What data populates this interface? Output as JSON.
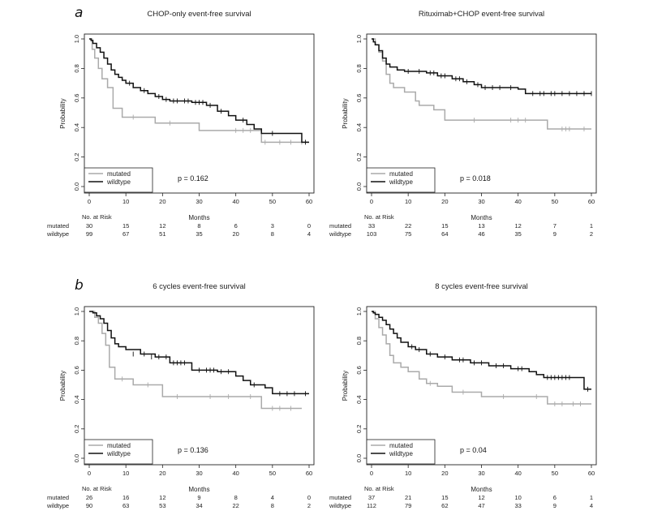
{
  "page": {
    "label_a": "a",
    "label_b": "b"
  },
  "chart_data": [
    {
      "type": "line",
      "title": "CHOP-only event-free survival",
      "xlabel": "Months",
      "ylabel": "Probability",
      "xlim": [
        0,
        60
      ],
      "ylim": [
        0,
        1
      ],
      "xticks": [
        "0",
        "10",
        "20",
        "30",
        "40",
        "50",
        "60"
      ],
      "yticks": [
        "0.0",
        "0.2",
        "0.4",
        "0.6",
        "0.8",
        "1.0"
      ],
      "p_value": "p = 0.162",
      "legend": [
        "mutated",
        "wildtype"
      ],
      "series": [
        {
          "name": "mutated",
          "color": "#aaaaaa",
          "x": [
            0,
            0.8,
            1.5,
            2.5,
            3.5,
            5,
            6.5,
            9,
            18,
            30,
            47,
            60
          ],
          "y": [
            1.0,
            0.93,
            0.87,
            0.8,
            0.73,
            0.67,
            0.53,
            0.47,
            0.43,
            0.38,
            0.3,
            0.3
          ],
          "censor_x": [
            12,
            22,
            40,
            42,
            44,
            48,
            52,
            55,
            58
          ],
          "censor_y": [
            0.47,
            0.43,
            0.38,
            0.38,
            0.38,
            0.3,
            0.3,
            0.3,
            0.3
          ]
        },
        {
          "name": "wildtype",
          "color": "#111111",
          "x": [
            0,
            0.5,
            1,
            2,
            3,
            4,
            5,
            6,
            7,
            8,
            9,
            10,
            12,
            14,
            16,
            18,
            20,
            22,
            25,
            28,
            32,
            35,
            38,
            40,
            43,
            45,
            47,
            52,
            58,
            60
          ],
          "y": [
            1.0,
            0.99,
            0.97,
            0.94,
            0.91,
            0.87,
            0.83,
            0.79,
            0.76,
            0.74,
            0.72,
            0.7,
            0.67,
            0.65,
            0.63,
            0.61,
            0.59,
            0.58,
            0.58,
            0.57,
            0.55,
            0.51,
            0.48,
            0.45,
            0.42,
            0.39,
            0.36,
            0.36,
            0.3,
            0.3
          ],
          "censor_x": [
            11,
            15,
            19,
            21,
            23,
            24,
            26,
            27,
            29,
            30,
            31,
            33,
            36,
            42,
            50,
            59
          ],
          "censor_y": [
            0.7,
            0.65,
            0.61,
            0.59,
            0.58,
            0.58,
            0.58,
            0.58,
            0.57,
            0.57,
            0.57,
            0.55,
            0.51,
            0.45,
            0.36,
            0.3
          ]
        }
      ],
      "risk_table": {
        "header": "No. at Risk",
        "rows": [
          {
            "label": "mutated",
            "values": [
              "30",
              "15",
              "12",
              "8",
              "6",
              "3",
              "0"
            ]
          },
          {
            "label": "wildtype",
            "values": [
              "99",
              "67",
              "51",
              "35",
              "20",
              "8",
              "4"
            ]
          }
        ]
      }
    },
    {
      "type": "line",
      "title": "Rituximab+CHOP event-free survival",
      "xlabel": "Months",
      "ylabel": "Probability",
      "xlim": [
        0,
        60
      ],
      "ylim": [
        0,
        1
      ],
      "xticks": [
        "0",
        "10",
        "20",
        "30",
        "40",
        "50",
        "60"
      ],
      "yticks": [
        "0.0",
        "0.2",
        "0.4",
        "0.6",
        "0.8",
        "1.0"
      ],
      "p_value": "p = 0.018",
      "legend": [
        "mutated",
        "wildtype"
      ],
      "series": [
        {
          "name": "mutated",
          "color": "#aaaaaa",
          "x": [
            0,
            1,
            2,
            3,
            4,
            5,
            6,
            9,
            12,
            13,
            17,
            20,
            48,
            60
          ],
          "y": [
            1.0,
            0.96,
            0.91,
            0.85,
            0.76,
            0.7,
            0.67,
            0.64,
            0.58,
            0.55,
            0.52,
            0.45,
            0.39,
            0.39
          ],
          "censor_x": [
            28,
            38,
            40,
            42,
            52,
            53,
            54,
            58
          ],
          "censor_y": [
            0.45,
            0.45,
            0.45,
            0.45,
            0.39,
            0.39,
            0.39,
            0.39
          ]
        },
        {
          "name": "wildtype",
          "color": "#111111",
          "x": [
            0,
            0.5,
            1,
            2,
            3,
            4,
            5,
            7,
            9,
            12,
            15,
            18,
            22,
            25,
            28,
            30,
            40,
            42,
            60
          ],
          "y": [
            1.0,
            0.98,
            0.96,
            0.92,
            0.87,
            0.83,
            0.81,
            0.79,
            0.78,
            0.78,
            0.77,
            0.75,
            0.73,
            0.71,
            0.69,
            0.67,
            0.66,
            0.63,
            0.63
          ],
          "censor_x": [
            10,
            13,
            16,
            17,
            19,
            20,
            23,
            24,
            26,
            29,
            31,
            33,
            35,
            38,
            44,
            46,
            47,
            49,
            50,
            52,
            54,
            56,
            58,
            60
          ],
          "censor_y": [
            0.78,
            0.78,
            0.77,
            0.77,
            0.75,
            0.75,
            0.73,
            0.73,
            0.71,
            0.69,
            0.67,
            0.67,
            0.67,
            0.67,
            0.63,
            0.63,
            0.63,
            0.63,
            0.63,
            0.63,
            0.63,
            0.63,
            0.63,
            0.63
          ]
        }
      ],
      "risk_table": {
        "header": "No. at Risk",
        "rows": [
          {
            "label": "mutated",
            "values": [
              "33",
              "22",
              "15",
              "13",
              "12",
              "7",
              "1"
            ]
          },
          {
            "label": "wildtype",
            "values": [
              "103",
              "75",
              "64",
              "46",
              "35",
              "9",
              "2"
            ]
          }
        ]
      }
    },
    {
      "type": "line",
      "title": "6 cycles event-free survival",
      "xlabel": "Months",
      "ylabel": "Probability",
      "xlim": [
        0,
        60
      ],
      "ylim": [
        0,
        1
      ],
      "xticks": [
        "0",
        "10",
        "20",
        "30",
        "40",
        "50",
        "60"
      ],
      "yticks": [
        "0.0",
        "0.2",
        "0.4",
        "0.6",
        "0.8",
        "1.0"
      ],
      "p_value": "p = 0.136",
      "legend": [
        "mutated",
        "wildtype"
      ],
      "series": [
        {
          "name": "mutated",
          "color": "#aaaaaa",
          "x": [
            0,
            1.5,
            2.5,
            3.5,
            4.5,
            5.5,
            7,
            12,
            20,
            47,
            58
          ],
          "y": [
            1.0,
            0.96,
            0.92,
            0.85,
            0.77,
            0.62,
            0.54,
            0.5,
            0.42,
            0.34,
            0.34
          ],
          "censor_x": [
            9,
            16,
            24,
            33,
            38,
            44,
            50,
            52,
            55
          ],
          "censor_y": [
            0.54,
            0.5,
            0.42,
            0.42,
            0.42,
            0.42,
            0.34,
            0.34,
            0.34
          ]
        },
        {
          "name": "wildtype",
          "color": "#111111",
          "x": [
            0,
            1,
            2,
            3,
            4,
            5,
            6,
            7,
            8,
            10,
            14,
            18,
            22,
            28,
            35,
            40,
            42,
            44,
            48,
            50,
            60
          ],
          "y": [
            1.0,
            0.99,
            0.97,
            0.95,
            0.92,
            0.87,
            0.82,
            0.78,
            0.76,
            0.74,
            0.71,
            0.69,
            0.65,
            0.6,
            0.59,
            0.56,
            0.53,
            0.5,
            0.48,
            0.44,
            0.44
          ],
          "censor_x": [
            12,
            15,
            17,
            19,
            21,
            23,
            24,
            25,
            26,
            30,
            32,
            33,
            34,
            36,
            38,
            45,
            52,
            54,
            56,
            59
          ],
          "censor_y": [
            0.71,
            0.71,
            0.69,
            0.69,
            0.69,
            0.65,
            0.65,
            0.65,
            0.65,
            0.6,
            0.6,
            0.6,
            0.6,
            0.59,
            0.59,
            0.5,
            0.44,
            0.44,
            0.44,
            0.44
          ]
        }
      ],
      "risk_table": {
        "header": "No. at Risk",
        "rows": [
          {
            "label": "mutated",
            "values": [
              "26",
              "16",
              "12",
              "9",
              "8",
              "4",
              "0"
            ]
          },
          {
            "label": "wildtype",
            "values": [
              "90",
              "63",
              "53",
              "34",
              "22",
              "8",
              "2"
            ]
          }
        ]
      }
    },
    {
      "type": "line",
      "title": "8 cycles event-free survival",
      "xlabel": "Months",
      "ylabel": "Probability",
      "xlim": [
        0,
        60
      ],
      "ylim": [
        0,
        1
      ],
      "xticks": [
        "0",
        "10",
        "20",
        "30",
        "40",
        "50",
        "60"
      ],
      "yticks": [
        "0.0",
        "0.2",
        "0.4",
        "0.6",
        "0.8",
        "1.0"
      ],
      "p_value": "p = 0.04",
      "legend": [
        "mutated",
        "wildtype"
      ],
      "series": [
        {
          "name": "mutated",
          "color": "#aaaaaa",
          "x": [
            0,
            1,
            2,
            3,
            4,
            5,
            6,
            8,
            10,
            13,
            15,
            18,
            22,
            30,
            48,
            60
          ],
          "y": [
            1.0,
            0.95,
            0.89,
            0.84,
            0.78,
            0.7,
            0.65,
            0.62,
            0.59,
            0.54,
            0.51,
            0.49,
            0.45,
            0.42,
            0.37,
            0.37
          ],
          "censor_x": [
            16,
            25,
            36,
            45,
            50,
            52,
            55,
            57
          ],
          "censor_y": [
            0.51,
            0.45,
            0.42,
            0.42,
            0.37,
            0.37,
            0.37,
            0.37
          ]
        },
        {
          "name": "wildtype",
          "color": "#111111",
          "x": [
            0,
            0.5,
            1,
            2,
            3,
            4,
            5,
            6,
            7,
            8,
            10,
            12,
            15,
            18,
            22,
            27,
            32,
            38,
            43,
            45,
            47,
            58,
            60
          ],
          "y": [
            1.0,
            0.99,
            0.98,
            0.96,
            0.94,
            0.91,
            0.88,
            0.85,
            0.82,
            0.79,
            0.76,
            0.74,
            0.71,
            0.69,
            0.67,
            0.65,
            0.63,
            0.61,
            0.59,
            0.57,
            0.55,
            0.47,
            0.47
          ],
          "censor_x": [
            11,
            13,
            16,
            20,
            24,
            25,
            28,
            30,
            34,
            36,
            40,
            41,
            48,
            49,
            50,
            51,
            52,
            53,
            54,
            59
          ],
          "censor_y": [
            0.76,
            0.74,
            0.71,
            0.69,
            0.67,
            0.67,
            0.65,
            0.65,
            0.63,
            0.63,
            0.61,
            0.61,
            0.55,
            0.55,
            0.55,
            0.55,
            0.55,
            0.55,
            0.55,
            0.47
          ]
        }
      ],
      "risk_table": {
        "header": "No. at Risk",
        "rows": [
          {
            "label": "mutated",
            "values": [
              "37",
              "21",
              "15",
              "12",
              "10",
              "6",
              "1"
            ]
          },
          {
            "label": "wildtype",
            "values": [
              "112",
              "79",
              "62",
              "47",
              "33",
              "9",
              "4"
            ]
          }
        ]
      }
    }
  ]
}
